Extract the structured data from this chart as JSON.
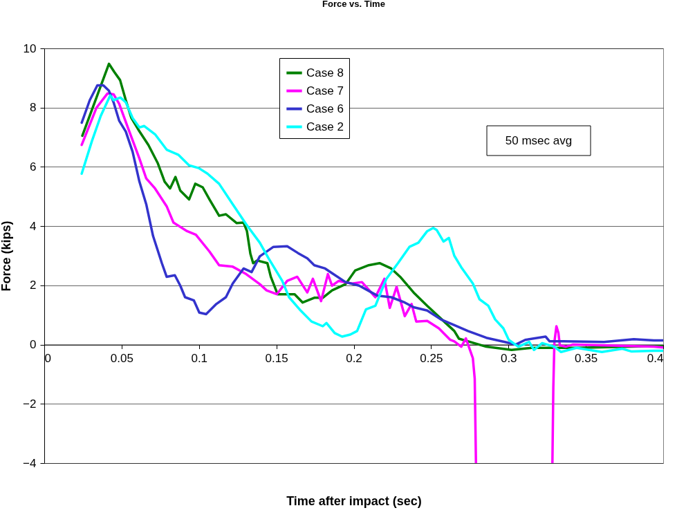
{
  "chart_data": {
    "type": "line",
    "title": "Force vs. Time",
    "xlabel": "Time after impact (sec)",
    "ylabel": "Force (kips)",
    "xlim": [
      0,
      0.4
    ],
    "xticks": [
      0,
      0.05,
      0.1,
      0.15,
      0.2,
      0.25,
      0.3,
      0.35,
      0.4
    ],
    "ylim": [
      -4,
      10
    ],
    "yticks": [
      -4,
      -2,
      0,
      2,
      4,
      6,
      8,
      10
    ],
    "grid": "y",
    "legend": "top",
    "annotations": [
      "50 msec avg"
    ],
    "series": [
      {
        "name": "Case 8",
        "color": "#008000",
        "x": [
          0.0246,
          0.0418,
          0.0453,
          0.049,
          0.0527,
          0.0563,
          0.0615,
          0.0673,
          0.0734,
          0.0778,
          0.0813,
          0.0848,
          0.0879,
          0.0936,
          0.0976,
          0.1024,
          0.1068,
          0.113,
          0.1174,
          0.1244,
          0.1288,
          0.131,
          0.1332,
          0.135,
          0.1376,
          0.1442,
          0.1464,
          0.1508,
          0.1618,
          0.167,
          0.1745,
          0.18,
          0.186,
          0.1947,
          0.2009,
          0.2097,
          0.2167,
          0.2242,
          0.23,
          0.2387,
          0.2475,
          0.2563,
          0.265,
          0.268,
          0.2857,
          0.302,
          0.315,
          0.344,
          0.394,
          0.4
        ],
        "values": [
          7.05,
          9.48,
          9.2,
          8.93,
          8.25,
          7.65,
          7.2,
          6.74,
          6.12,
          5.5,
          5.27,
          5.66,
          5.2,
          4.9,
          5.43,
          5.31,
          4.9,
          4.35,
          4.4,
          4.1,
          4.12,
          3.83,
          3.07,
          2.75,
          2.84,
          2.75,
          2.29,
          1.7,
          1.7,
          1.42,
          1.58,
          1.58,
          1.83,
          2.04,
          2.5,
          2.68,
          2.75,
          2.57,
          2.29,
          1.76,
          1.31,
          0.88,
          0.46,
          0.2,
          -0.07,
          -0.18,
          -0.11,
          -0.11,
          -0.05,
          -0.05
        ]
      },
      {
        "name": "Case 7",
        "color": "#ff00ff",
        "x": [
          0.0242,
          0.0338,
          0.0409,
          0.0448,
          0.0484,
          0.054,
          0.0615,
          0.0659,
          0.0716,
          0.0791,
          0.0835,
          0.0923,
          0.098,
          0.1068,
          0.113,
          0.1218,
          0.1305,
          0.1393,
          0.1437,
          0.1503,
          0.157,
          0.1635,
          0.17,
          0.1736,
          0.1789,
          0.1833,
          0.186,
          0.1903,
          0.199,
          0.2053,
          0.214,
          0.2198,
          0.2233,
          0.2277,
          0.233,
          0.2374,
          0.2404,
          0.2475,
          0.255,
          0.2624,
          0.265,
          0.2695,
          0.2725,
          0.277,
          0.2782,
          0.279,
          0.303,
          0.3284,
          0.329,
          0.3297,
          0.331,
          0.3323,
          0.3332,
          0.337,
          0.3415,
          0.359,
          0.394,
          0.4
        ],
        "values": [
          6.74,
          8.0,
          8.48,
          8.45,
          8.13,
          7.33,
          6.28,
          5.61,
          5.27,
          4.67,
          4.12,
          3.83,
          3.71,
          3.14,
          2.68,
          2.63,
          2.38,
          2.04,
          1.83,
          1.7,
          2.15,
          2.29,
          1.76,
          2.22,
          1.47,
          2.38,
          1.99,
          2.15,
          2.06,
          2.11,
          1.6,
          2.22,
          1.24,
          1.95,
          0.96,
          1.37,
          0.78,
          0.8,
          0.55,
          0.16,
          0.11,
          -0.07,
          0.21,
          -0.46,
          -1.15,
          -4,
          null,
          -4,
          -1.44,
          0.09,
          0.62,
          0.39,
          -0.02,
          -0.07,
          0,
          -0.02,
          -0.07,
          -0.1
        ]
      },
      {
        "name": "Case 6",
        "color": "#3333cc",
        "x": [
          0.0242,
          0.0294,
          0.0343,
          0.0382,
          0.0418,
          0.0448,
          0.0484,
          0.0527,
          0.0571,
          0.0615,
          0.0659,
          0.0703,
          0.076,
          0.0791,
          0.0844,
          0.0879,
          0.091,
          0.0967,
          0.1002,
          0.1046,
          0.1112,
          0.1174,
          0.1218,
          0.1288,
          0.134,
          0.1393,
          0.1481,
          0.157,
          0.164,
          0.17,
          0.1745,
          0.1815,
          0.186,
          0.1947,
          0.2035,
          0.2154,
          0.2242,
          0.233,
          0.2387,
          0.2475,
          0.2563,
          0.265,
          0.2738,
          0.2857,
          0.2976,
          0.3046,
          0.3108,
          0.324,
          0.3266,
          0.3354,
          0.3618,
          0.381,
          0.394,
          0.4
        ],
        "values": [
          7.49,
          8.25,
          8.75,
          8.75,
          8.57,
          8.18,
          7.56,
          7.19,
          6.51,
          5.5,
          4.74,
          3.67,
          2.75,
          2.29,
          2.34,
          1.99,
          1.6,
          1.49,
          1.08,
          1.03,
          1.37,
          1.6,
          2.06,
          2.57,
          2.45,
          2.98,
          3.3,
          3.32,
          3.09,
          2.91,
          2.68,
          2.57,
          2.41,
          2.11,
          1.99,
          1.65,
          1.6,
          1.42,
          1.26,
          1.15,
          0.85,
          0.66,
          0.46,
          0.23,
          0.09,
          0,
          0.16,
          0.27,
          0.11,
          0.11,
          0.09,
          0.18,
          0.14,
          0.14
        ]
      },
      {
        "name": "Case 2",
        "color": "#00ffff",
        "x": [
          0.0242,
          0.0308,
          0.0365,
          0.0426,
          0.0448,
          0.0492,
          0.0527,
          0.0571,
          0.0615,
          0.0646,
          0.0716,
          0.0791,
          0.0866,
          0.0936,
          0.0998,
          0.1055,
          0.113,
          0.1218,
          0.1305,
          0.1393,
          0.145,
          0.1538,
          0.1582,
          0.1657,
          0.1727,
          0.18,
          0.1824,
          0.1877,
          0.1925,
          0.1978,
          0.2022,
          0.2079,
          0.214,
          0.2211,
          0.2286,
          0.236,
          0.2418,
          0.2475,
          0.2514,
          0.2536,
          0.258,
          0.2615,
          0.265,
          0.2695,
          0.277,
          0.2813,
          0.287,
          0.2914,
          0.2967,
          0.3002,
          0.3064,
          0.3134,
          0.3165,
          0.3218,
          0.3297,
          0.334,
          0.344,
          0.3604,
          0.3736,
          0.3793,
          0.394,
          0.4
        ],
        "values": [
          5.77,
          6.87,
          7.72,
          8.41,
          8.25,
          8.34,
          8.18,
          7.65,
          7.33,
          7.38,
          7.1,
          6.58,
          6.41,
          6.05,
          5.96,
          5.77,
          5.43,
          4.74,
          4.06,
          3.44,
          2.91,
          2.15,
          1.6,
          1.15,
          0.78,
          0.62,
          0.73,
          0.39,
          0.27,
          0.34,
          0.46,
          1.19,
          1.31,
          2.22,
          2.75,
          3.3,
          3.44,
          3.83,
          3.94,
          3.87,
          3.48,
          3.6,
          3.0,
          2.61,
          2.06,
          1.53,
          1.31,
          0.85,
          0.55,
          0.16,
          -0.07,
          0.09,
          -0.18,
          0.05,
          -0.07,
          -0.25,
          -0.11,
          -0.25,
          -0.14,
          -0.23,
          -0.21,
          -0.21
        ]
      }
    ]
  }
}
